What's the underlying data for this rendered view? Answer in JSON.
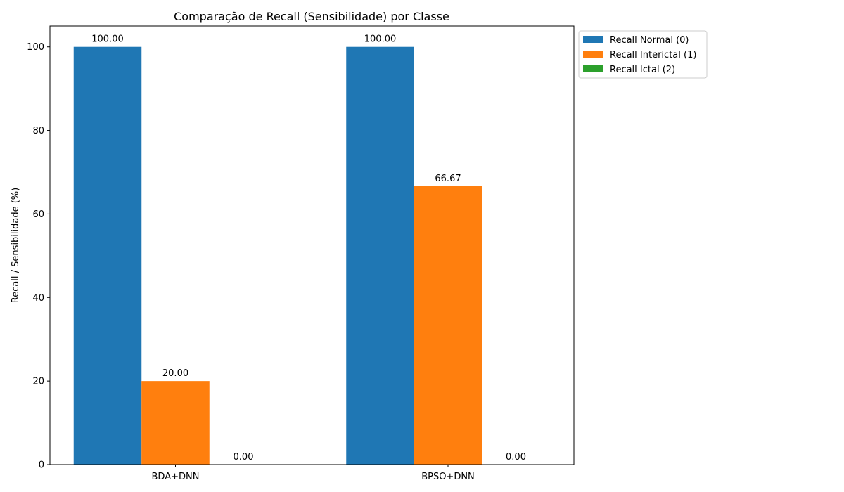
{
  "chart_data": {
    "type": "bar",
    "title": "Comparação de Recall (Sensibilidade) por Classe",
    "xlabel": "",
    "ylabel": "Recall / Sensibilidade (%)",
    "categories": [
      "BDA+DNN",
      "BPSO+DNN"
    ],
    "series": [
      {
        "name": "Recall Normal (0)",
        "color": "#1f77b4",
        "values": [
          100.0,
          100.0
        ],
        "labels": [
          "100.00",
          "100.00"
        ]
      },
      {
        "name": "Recall Interictal (1)",
        "color": "#ff7f0e",
        "values": [
          20.0,
          66.67
        ],
        "labels": [
          "20.00",
          "66.67"
        ]
      },
      {
        "name": "Recall Ictal (2)",
        "color": "#2ca02c",
        "values": [
          0.0,
          0.0
        ],
        "labels": [
          "0.00",
          "0.00"
        ]
      }
    ],
    "ylim": [
      0,
      105
    ],
    "yticks": [
      "0",
      "20",
      "40",
      "60",
      "80",
      "100"
    ],
    "grid": false,
    "legend_position": "outside-upper-right"
  }
}
